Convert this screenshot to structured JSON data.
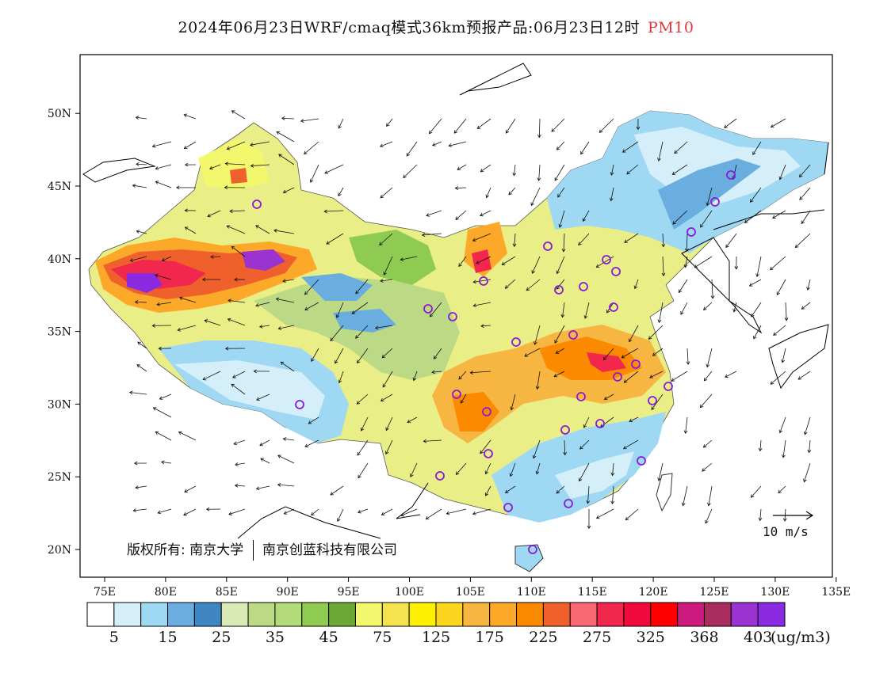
{
  "title": {
    "text": "2024年06月23日WRF/cmaq模式36km预报产品:06月23日12时",
    "variable": "PM10",
    "variable_color": "#e8333a"
  },
  "axes": {
    "lon_ticks": [
      "75E",
      "80E",
      "85E",
      "90E",
      "95E",
      "100E",
      "105E",
      "110E",
      "115E",
      "120E",
      "125E",
      "130E",
      "135E"
    ],
    "lat_ticks": [
      "20N",
      "25N",
      "30N",
      "35N",
      "40N",
      "45N",
      "50N"
    ]
  },
  "colorbar": {
    "colors": [
      "#ffffff",
      "#d4eefa",
      "#9fd8f3",
      "#6aaedf",
      "#3f86c2",
      "#dbe9b4",
      "#bcd986",
      "#b3db7a",
      "#8fcb52",
      "#6ca836",
      "#f2f76e",
      "#f5e24f",
      "#fdf000",
      "#fbd51e",
      "#f7b642",
      "#fca92a",
      "#fb8a00",
      "#f0602c",
      "#fb6875",
      "#f1274d",
      "#f00a3d",
      "#ff0000",
      "#cc1a7f",
      "#a82c5c",
      "#9b33d0",
      "#8a2be2"
    ],
    "labels": [
      "5",
      "15",
      "25",
      "35",
      "45",
      "75",
      "125",
      "175",
      "225",
      "275",
      "325",
      "368",
      "403"
    ],
    "unit": "(ug/m3)"
  },
  "legend_vector": {
    "label": "10 m/s"
  },
  "copyright": {
    "text": "版权所有: 南京大学",
    "text2": "南京创蓝科技有限公司"
  }
}
